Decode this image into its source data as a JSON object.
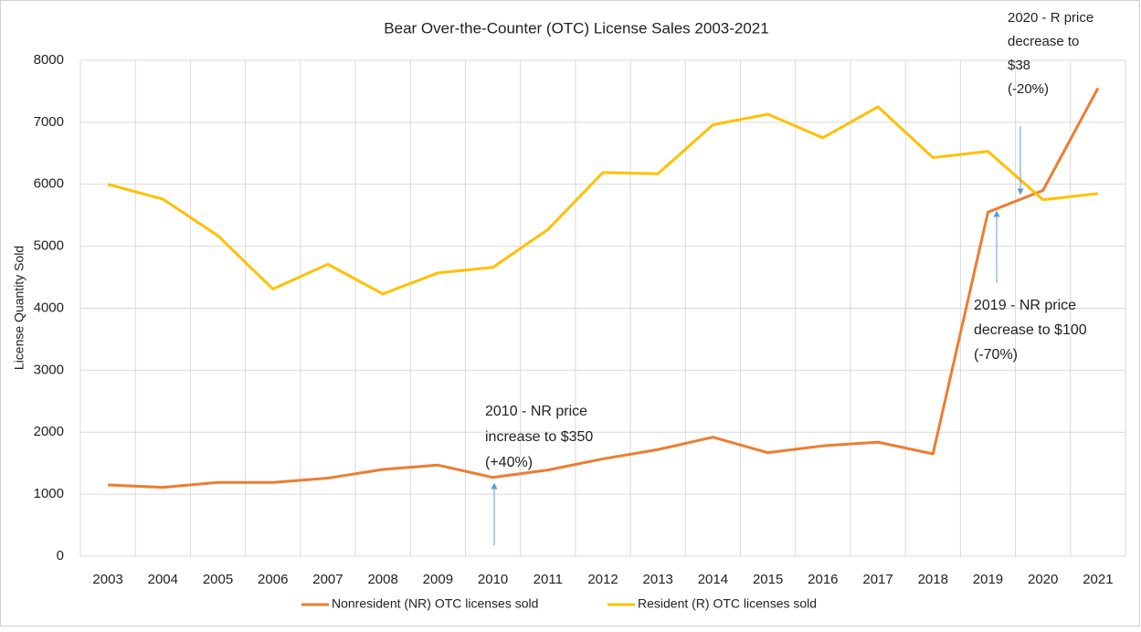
{
  "chart_data": {
    "type": "line",
    "title": "Bear Over-the-Counter (OTC) License Sales 2003-2021",
    "y_label": "License Quantity Sold",
    "categories": [
      "2003",
      "2004",
      "2005",
      "2006",
      "2007",
      "2008",
      "2009",
      "2010",
      "2011",
      "2012",
      "2013",
      "2014",
      "2015",
      "2016",
      "2017",
      "2018",
      "2019",
      "2020",
      "2021"
    ],
    "series": [
      {
        "name": "Nonresident (NR)  OTC licenses sold",
        "color": "#ed7d31",
        "values": [
          1150,
          1110,
          1190,
          1190,
          1260,
          1400,
          1470,
          1270,
          1390,
          1570,
          1720,
          1920,
          1670,
          1780,
          1840,
          1650,
          5550,
          5900,
          7550
        ]
      },
      {
        "name": "Resident (R) OTC licenses sold",
        "color": "#ffc000",
        "values": [
          6000,
          5760,
          5170,
          4310,
          4710,
          4230,
          4570,
          4660,
          5270,
          6190,
          6170,
          6960,
          7130,
          6750,
          7250,
          6430,
          6530,
          5750,
          5850
        ]
      }
    ],
    "ylim": [
      0,
      8000
    ],
    "yticks": [
      0,
      1000,
      2000,
      3000,
      4000,
      5000,
      6000,
      7000,
      8000
    ],
    "grid": true,
    "legend": "bottom",
    "annotations": [
      {
        "lines": [
          "2010 - NR price",
          "increase to $350",
          "(+40%)"
        ]
      },
      {
        "lines": [
          "2019 - NR price",
          "decrease to $100",
          "(-70%)"
        ]
      },
      {
        "lines": [
          "2020 - R price",
          "decrease to",
          "$38",
          "(-20%)"
        ]
      }
    ]
  }
}
